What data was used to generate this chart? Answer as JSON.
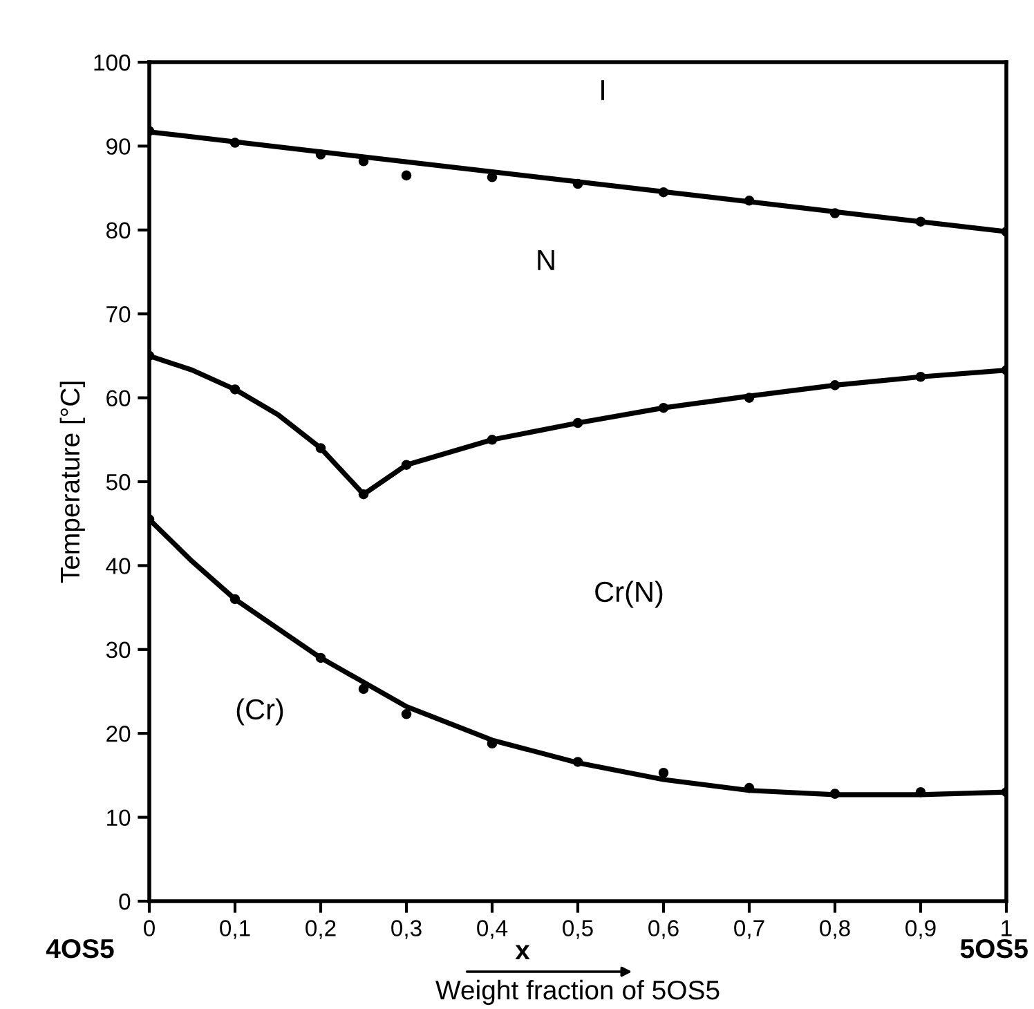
{
  "chart_data": {
    "type": "scatter",
    "ylabel": "Temperature [°C]",
    "xlabel": "Weight fraction of 5OS5",
    "xlim": [
      0,
      1
    ],
    "ylim": [
      0,
      100
    ],
    "xticks": [
      0,
      {
        "value": 0.1,
        "label": "0,1"
      },
      {
        "value": 0.2,
        "label": "0,2"
      },
      {
        "value": 0.3,
        "label": "0,3"
      },
      {
        "value": 0.4,
        "label": "0,4"
      },
      {
        "value": 0.5,
        "label": "0,5"
      },
      {
        "value": 0.6,
        "label": "0,6"
      },
      {
        "value": 0.7,
        "label": "0,7"
      },
      {
        "value": 0.8,
        "label": "0,8"
      },
      {
        "value": 0.9,
        "label": "0,9"
      },
      1
    ],
    "yticks": [
      0,
      10,
      20,
      30,
      40,
      50,
      60,
      70,
      80,
      90,
      100
    ],
    "grid": false,
    "legend": false,
    "series": [
      {
        "marker": "circle",
        "color": "#000000",
        "x": [
          0,
          0.1,
          0.2,
          0.25,
          0.3,
          0.4,
          0.5,
          0.6,
          0.7,
          0.8,
          0.9,
          1
        ],
        "values": [
          91.8,
          90.4,
          89,
          88.2,
          86.5,
          86.3,
          85.5,
          84.5,
          83.5,
          82,
          81,
          79.8
        ]
      },
      {
        "marker": "circle",
        "color": "#000000",
        "x": [
          0,
          0.1,
          0.2,
          0.25,
          0.3,
          0.4,
          0.5,
          0.6,
          0.7,
          0.8,
          0.9,
          1
        ],
        "values": [
          65,
          61,
          54,
          48.5,
          52,
          55,
          57,
          58.8,
          60,
          61.5,
          62.5,
          63.3
        ]
      },
      {
        "marker": "circle",
        "color": "#000000",
        "x": [
          0,
          0.1,
          0.2,
          0.25,
          0.3,
          0.4,
          0.5,
          0.6,
          0.7,
          0.8,
          0.9,
          1
        ],
        "values": [
          45.5,
          36,
          29,
          25.3,
          22.3,
          18.8,
          16.6,
          15.3,
          13.5,
          12.8,
          13,
          13
        ]
      },
      {
        "type": "line",
        "marker": "none",
        "line_style": "solid",
        "color": "#000000",
        "x": [
          0,
          1
        ],
        "values": [
          91.7,
          79.8
        ]
      },
      {
        "type": "line",
        "marker": "none",
        "line_style": "solid",
        "color": "#000000",
        "x": [
          0,
          0.05,
          0.1,
          0.15,
          0.2,
          0.25,
          0.3,
          0.4,
          0.5,
          0.6,
          0.7,
          0.8,
          0.9,
          1
        ],
        "values": [
          65,
          63.3,
          61,
          58,
          54,
          48.5,
          52,
          55,
          57,
          58.8,
          60.2,
          61.5,
          62.5,
          63.3
        ]
      },
      {
        "type": "line",
        "marker": "none",
        "line_style": "solid",
        "color": "#000000",
        "x": [
          0,
          0.05,
          0.1,
          0.2,
          0.3,
          0.4,
          0.5,
          0.6,
          0.7,
          0.8,
          0.9,
          1
        ],
        "values": [
          45.5,
          40.5,
          36,
          29,
          23.2,
          19.2,
          16.5,
          14.5,
          13.2,
          12.7,
          12.7,
          13
        ]
      }
    ],
    "annotations": [
      "I",
      "N",
      "Cr(N)",
      "(Cr)",
      "4OS5",
      "x",
      "5OS5"
    ]
  }
}
